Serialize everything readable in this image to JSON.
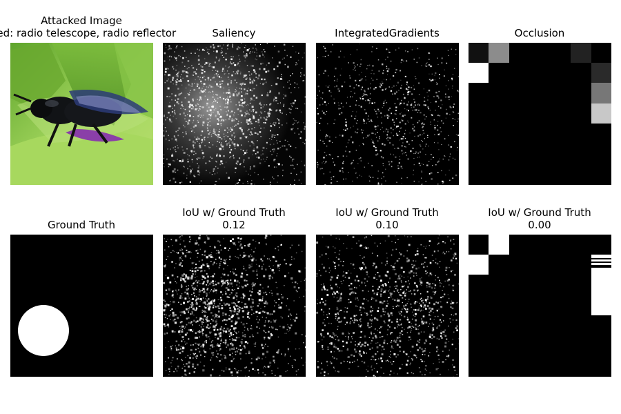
{
  "panels": [
    {
      "title_lines": [
        "Attacked Image",
        "Pred: radio telescope, radio reflector"
      ]
    },
    {
      "title_lines": [
        "Saliency"
      ]
    },
    {
      "title_lines": [
        "IntegratedGradients"
      ]
    },
    {
      "title_lines": [
        "Occlusion"
      ]
    },
    {
      "title_lines": [
        "Ground Truth"
      ]
    },
    {
      "title_lines": [
        "IoU w/ Ground Truth",
        "0.12"
      ]
    },
    {
      "title_lines": [
        "IoU w/ Ground Truth",
        "0.10"
      ]
    },
    {
      "title_lines": [
        "IoU w/ Ground Truth",
        "0.00"
      ]
    }
  ]
}
